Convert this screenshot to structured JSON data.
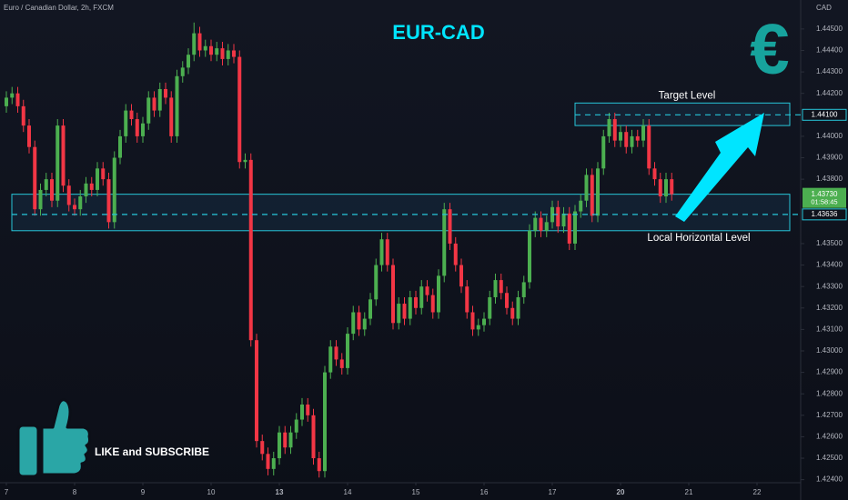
{
  "chart_data": {
    "type": "candlestick",
    "title": "EUR-CAD",
    "symbol_label": "Euro / Canadian Dollar, 2h, FXCM",
    "currency_label": "CAD",
    "icon_text": "€",
    "cta_text": "LIKE and SUBSCRIBE",
    "up_color": "#4caf50",
    "down_color": "#f23645",
    "open": [
      1.4414,
      1.4418,
      1.442,
      1.4414,
      1.4405,
      1.4395,
      1.4366,
      1.4375,
      1.438,
      1.437,
      1.4405,
      1.4377,
      1.4368,
      1.4366,
      1.4372,
      1.4378,
      1.4375,
      1.4385,
      1.438,
      1.436,
      1.439,
      1.44,
      1.4412,
      1.4408,
      1.44,
      1.4406,
      1.4418,
      1.4412,
      1.4422,
      1.4418,
      1.44,
      1.4428,
      1.4432,
      1.4438,
      1.4448,
      1.444,
      1.4442,
      1.4438,
      1.4441,
      1.4436,
      1.444,
      1.4437,
      1.4388,
      1.4389,
      1.4305,
      1.4258,
      1.4252,
      1.4245,
      1.425,
      1.4262,
      1.4255,
      1.4262,
      1.4268,
      1.4275,
      1.427,
      1.425,
      1.4244,
      1.429,
      1.4302,
      1.4296,
      1.4292,
      1.4308,
      1.4318,
      1.431,
      1.4315,
      1.4324,
      1.434,
      1.4352,
      1.434,
      1.4313,
      1.4322,
      1.4315,
      1.4325,
      1.432,
      1.433,
      1.4326,
      1.4318,
      1.4335,
      1.4366,
      1.435,
      1.434,
      1.433,
      1.4318,
      1.431,
      1.4312,
      1.4315,
      1.4325,
      1.4333,
      1.4327,
      1.432,
      1.4315,
      1.4325,
      1.4332,
      1.4356,
      1.4362,
      1.4356,
      1.436,
      1.4367,
      1.4358,
      1.4364,
      1.435,
      1.4365,
      1.437,
      1.4382,
      1.4363,
      1.4385,
      1.44,
      1.4408,
      1.4398,
      1.4402,
      1.4395,
      1.44,
      1.4398,
      1.4405,
      1.4385,
      1.438,
      1.4372,
      1.438
    ],
    "high": [
      1.4421,
      1.4423,
      1.4423,
      1.4417,
      1.4408,
      1.4398,
      1.4378,
      1.4383,
      1.4383,
      1.4408,
      1.4408,
      1.438,
      1.4371,
      1.4375,
      1.4381,
      1.4381,
      1.4388,
      1.4388,
      1.4383,
      1.4393,
      1.4403,
      1.4415,
      1.4415,
      1.4411,
      1.4409,
      1.4421,
      1.4421,
      1.4425,
      1.4425,
      1.4421,
      1.4431,
      1.4435,
      1.4441,
      1.4453,
      1.4451,
      1.4445,
      1.4445,
      1.4444,
      1.4444,
      1.4443,
      1.4443,
      1.444,
      1.4392,
      1.4392,
      1.4308,
      1.4261,
      1.4255,
      1.4253,
      1.4265,
      1.4265,
      1.4265,
      1.4271,
      1.4278,
      1.4278,
      1.4273,
      1.4253,
      1.4293,
      1.4305,
      1.4305,
      1.4299,
      1.4311,
      1.4321,
      1.4321,
      1.4318,
      1.4327,
      1.4343,
      1.4355,
      1.4355,
      1.4343,
      1.4325,
      1.4325,
      1.4328,
      1.4328,
      1.4333,
      1.4333,
      1.4329,
      1.4338,
      1.4369,
      1.4369,
      1.4353,
      1.4343,
      1.4333,
      1.4321,
      1.4315,
      1.4318,
      1.4328,
      1.4336,
      1.4336,
      1.433,
      1.4323,
      1.4328,
      1.4335,
      1.4359,
      1.4365,
      1.4365,
      1.4363,
      1.437,
      1.437,
      1.4367,
      1.4367,
      1.4368,
      1.4373,
      1.4385,
      1.4385,
      1.4388,
      1.4403,
      1.4411,
      1.4411,
      1.4405,
      1.4405,
      1.4403,
      1.4403,
      1.4408,
      1.4408,
      1.4388,
      1.4383,
      1.4383,
      1.4383
    ],
    "low": [
      1.4411,
      1.4415,
      1.4411,
      1.4402,
      1.4392,
      1.4363,
      1.4363,
      1.4372,
      1.4367,
      1.4367,
      1.4374,
      1.4365,
      1.4363,
      1.4363,
      1.4369,
      1.4372,
      1.4372,
      1.4377,
      1.4357,
      1.4357,
      1.4387,
      1.4397,
      1.4405,
      1.4397,
      1.4397,
      1.4403,
      1.4409,
      1.4409,
      1.4415,
      1.4397,
      1.4397,
      1.4425,
      1.4429,
      1.4435,
      1.4437,
      1.4437,
      1.4435,
      1.4435,
      1.4433,
      1.4433,
      1.4434,
      1.4385,
      1.4385,
      1.4302,
      1.4255,
      1.4249,
      1.4242,
      1.4242,
      1.4247,
      1.4252,
      1.4252,
      1.4259,
      1.4265,
      1.4267,
      1.4247,
      1.4241,
      1.4241,
      1.4287,
      1.4293,
      1.4289,
      1.4289,
      1.4305,
      1.4307,
      1.4307,
      1.4312,
      1.4321,
      1.4337,
      1.4337,
      1.431,
      1.431,
      1.4312,
      1.4312,
      1.4317,
      1.4317,
      1.4323,
      1.4315,
      1.4315,
      1.4332,
      1.4347,
      1.4337,
      1.4327,
      1.4315,
      1.4307,
      1.4307,
      1.4309,
      1.4312,
      1.4322,
      1.4324,
      1.4317,
      1.4312,
      1.4312,
      1.4322,
      1.4329,
      1.4353,
      1.4353,
      1.4353,
      1.4357,
      1.4355,
      1.4355,
      1.4347,
      1.4347,
      1.4362,
      1.4367,
      1.436,
      1.436,
      1.4382,
      1.4397,
      1.4395,
      1.4395,
      1.4392,
      1.4392,
      1.4395,
      1.4395,
      1.4382,
      1.4377,
      1.4369,
      1.4369,
      1.437
    ],
    "close": [
      1.4418,
      1.442,
      1.4414,
      1.4405,
      1.4395,
      1.4366,
      1.4375,
      1.438,
      1.437,
      1.4405,
      1.4377,
      1.4368,
      1.4366,
      1.4372,
      1.4378,
      1.4375,
      1.4385,
      1.438,
      1.436,
      1.439,
      1.44,
      1.4412,
      1.4408,
      1.44,
      1.4406,
      1.4418,
      1.4412,
      1.4422,
      1.4418,
      1.44,
      1.4428,
      1.4432,
      1.4438,
      1.4448,
      1.444,
      1.4442,
      1.4438,
      1.4441,
      1.4436,
      1.444,
      1.4437,
      1.4388,
      1.4389,
      1.4305,
      1.4258,
      1.4252,
      1.4245,
      1.425,
      1.4262,
      1.4255,
      1.4262,
      1.4268,
      1.4275,
      1.427,
      1.425,
      1.4244,
      1.429,
      1.4302,
      1.4296,
      1.4292,
      1.4308,
      1.4318,
      1.431,
      1.4315,
      1.4324,
      1.434,
      1.4352,
      1.434,
      1.4313,
      1.4322,
      1.4315,
      1.4325,
      1.432,
      1.433,
      1.4326,
      1.4318,
      1.4335,
      1.4366,
      1.435,
      1.434,
      1.433,
      1.4318,
      1.431,
      1.4312,
      1.4315,
      1.4325,
      1.4333,
      1.4327,
      1.432,
      1.4315,
      1.4325,
      1.4332,
      1.4356,
      1.4362,
      1.4356,
      1.436,
      1.4367,
      1.4358,
      1.4364,
      1.435,
      1.4365,
      1.437,
      1.4382,
      1.4363,
      1.4385,
      1.44,
      1.4408,
      1.4398,
      1.4402,
      1.4395,
      1.44,
      1.4398,
      1.4405,
      1.4385,
      1.438,
      1.4372,
      1.438,
      1.4373
    ],
    "xlim": [
      -1.12,
      139.68
    ],
    "xticks": [
      {
        "value": 0,
        "label": "7"
      },
      {
        "value": 12,
        "label": "8"
      },
      {
        "value": 24,
        "label": "9"
      },
      {
        "value": 36,
        "label": "10"
      },
      {
        "value": 48,
        "label": "13",
        "bold": true
      },
      {
        "value": 60,
        "label": "14"
      },
      {
        "value": 72,
        "label": "15"
      },
      {
        "value": 84,
        "label": "16"
      },
      {
        "value": 96,
        "label": "17"
      },
      {
        "value": 108,
        "label": "20",
        "bold": true
      },
      {
        "value": 120,
        "label": "21"
      },
      {
        "value": 132,
        "label": "22"
      }
    ],
    "ylim": [
      1.4239,
      1.44635
    ],
    "yticks": [
      {
        "value": 1.445,
        "label": "1.44500"
      },
      {
        "value": 1.444,
        "label": "1.44400"
      },
      {
        "value": 1.443,
        "label": "1.44300"
      },
      {
        "value": 1.442,
        "label": "1.44200"
      },
      {
        "value": 1.44,
        "label": "1.44000"
      },
      {
        "value": 1.439,
        "label": "1.43900"
      },
      {
        "value": 1.438,
        "label": "1.43800"
      },
      {
        "value": 1.435,
        "label": "1.43500"
      },
      {
        "value": 1.434,
        "label": "1.43400"
      },
      {
        "value": 1.433,
        "label": "1.43300"
      },
      {
        "value": 1.432,
        "label": "1.43200"
      },
      {
        "value": 1.431,
        "label": "1.43100"
      },
      {
        "value": 1.43,
        "label": "1.43000"
      },
      {
        "value": 1.429,
        "label": "1.42900"
      },
      {
        "value": 1.428,
        "label": "1.42800"
      },
      {
        "value": 1.427,
        "label": "1.42700"
      },
      {
        "value": 1.426,
        "label": "1.42600"
      },
      {
        "value": 1.425,
        "label": "1.42500"
      },
      {
        "value": 1.424,
        "label": "1.42400"
      }
    ],
    "zones": [
      {
        "name": "Target Level",
        "low": 1.4405,
        "high": 1.44155,
        "level": 1.441,
        "level_label": "1.44100"
      },
      {
        "name": "Local Horizontal Level",
        "low": 1.4356,
        "high": 1.4373,
        "level": 1.43636,
        "level_label": "1.43636"
      }
    ],
    "last_price_label": "1.43730",
    "countdown": "01:58:45"
  }
}
